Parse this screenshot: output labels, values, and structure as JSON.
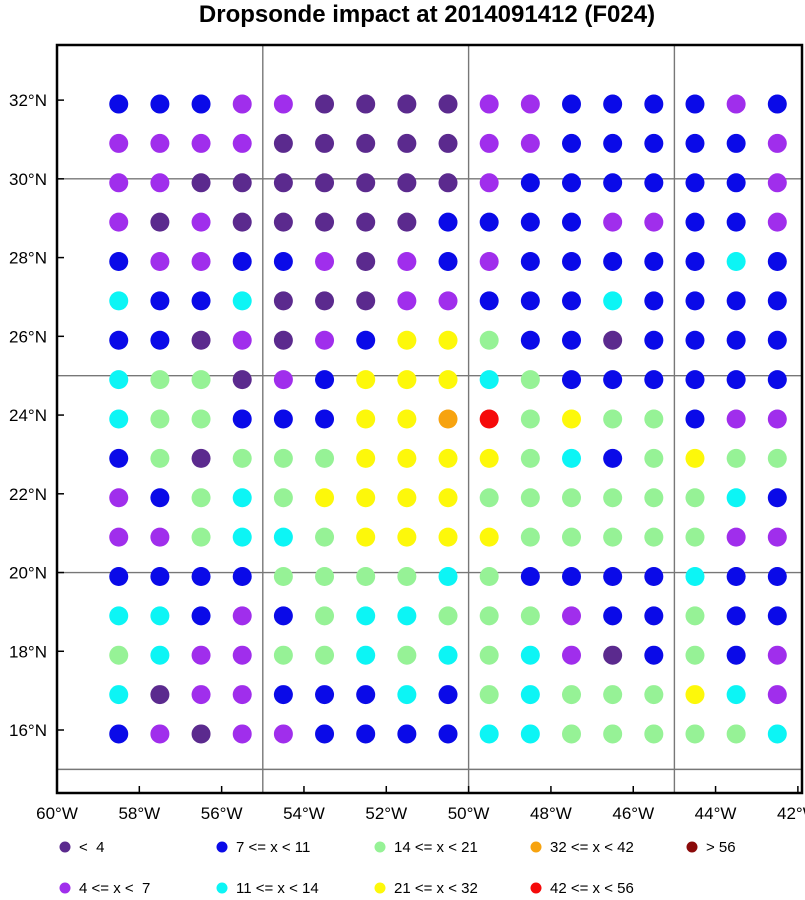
{
  "chart_data": {
    "type": "scatter",
    "title": "Dropsonde impact at 2014091412 (F024)",
    "x_ticks": [
      {
        "value": -60,
        "label": "60°W"
      },
      {
        "value": -58,
        "label": "58°W"
      },
      {
        "value": -56,
        "label": "56°W"
      },
      {
        "value": -54,
        "label": "54°W"
      },
      {
        "value": -52,
        "label": "52°W"
      },
      {
        "value": -50,
        "label": "50°W"
      },
      {
        "value": -48,
        "label": "48°W"
      },
      {
        "value": -46,
        "label": "46°W"
      },
      {
        "value": -44,
        "label": "44°W"
      },
      {
        "value": -42,
        "label": "42°W"
      }
    ],
    "y_ticks": [
      {
        "value": 16,
        "label": "16°N"
      },
      {
        "value": 18,
        "label": "18°N"
      },
      {
        "value": 20,
        "label": "20°N"
      },
      {
        "value": 22,
        "label": "22°N"
      },
      {
        "value": 24,
        "label": "24°N"
      },
      {
        "value": 26,
        "label": "26°N"
      },
      {
        "value": 28,
        "label": "28°N"
      },
      {
        "value": 30,
        "label": "30°N"
      },
      {
        "value": 32,
        "label": "32°N"
      }
    ],
    "xlim": [
      -60,
      -41.9
    ],
    "ylim": [
      14.4,
      33.4
    ],
    "grid_lon": [
      -55,
      -50,
      -45
    ],
    "grid_lat": [
      15,
      20,
      25,
      30
    ],
    "legend_placement": "bottom",
    "legend": [
      {
        "label": "<  4",
        "color": "#5b2a8e"
      },
      {
        "label": "7 <= x < 11",
        "color": "#0a0ae8"
      },
      {
        "label": "14 <= x < 21",
        "color": "#96f296"
      },
      {
        "label": "32 <= x < 42",
        "color": "#f7a30f"
      },
      {
        "label": "> 56",
        "color": "#8b0a0a"
      },
      {
        "label": "4 <= x <  7",
        "color": "#a02eec"
      },
      {
        "label": "11 <= x < 14",
        "color": "#0cf5f5"
      },
      {
        "label": "21 <= x < 32",
        "color": "#fdf80a"
      },
      {
        "label": "42 <= x < 56",
        "color": "#f50a0a"
      }
    ],
    "lons": [
      -58.5,
      -57.5,
      -56.5,
      -55.5,
      -54.5,
      -53.5,
      -52.5,
      -51.5,
      -50.5,
      -49.5,
      -48.5,
      -47.5,
      -46.5,
      -45.5,
      -44.5,
      -43.5,
      -42.5
    ],
    "lats": [
      31.9,
      30.9,
      29.9,
      28.9,
      27.9,
      26.9,
      25.9,
      24.9,
      23.9,
      22.9,
      21.9,
      20.9,
      19.9,
      18.9,
      17.9,
      16.9,
      15.9
    ],
    "category_codes": "0=<4, 1=4-7, 2=7-11, 3=11-14, 4=14-21, 5=21-32, 6=32-42, 7=42-56",
    "rows": [
      "22211000011222212",
      "11110000011222221",
      "11000000012222221",
      "10100000222211221",
      "21122101212222232",
      "32230001122232222",
      "22010125542202222",
      "34401255534222222",
      "34422255674544211",
      "24044455554324544",
      "12434555544444432",
      "11433455554444411",
      "22224444342222322",
      "33212433444122422",
      "43114434343102421",
      "30112223243444531",
      "21011222233444443"
    ]
  }
}
